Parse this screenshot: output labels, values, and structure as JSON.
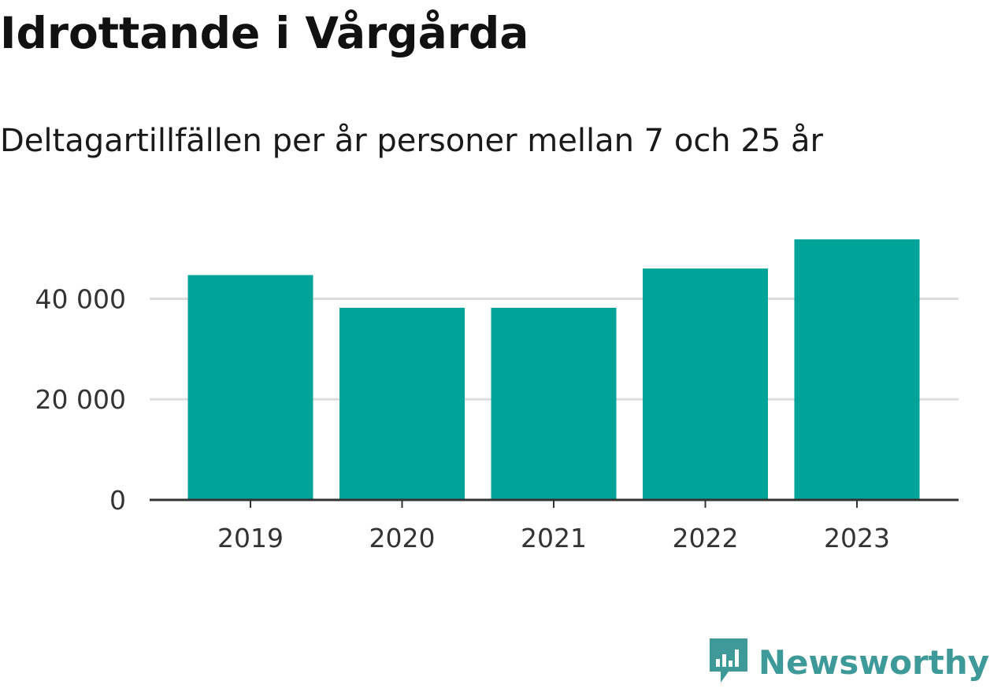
{
  "chart_data": {
    "type": "bar",
    "title": "Idrottande i Vårgårda",
    "subtitle": "Deltagartillfällen per år personer mellan 7 och 25 år",
    "categories": [
      "2019",
      "2020",
      "2021",
      "2022",
      "2023"
    ],
    "values": [
      44700,
      38200,
      38200,
      46000,
      51800
    ],
    "ylim": [
      0,
      54000
    ],
    "yticks": [
      0,
      20000,
      40000
    ],
    "ytick_labels": [
      "0",
      "20 000",
      "40 000"
    ],
    "grid": true,
    "colors": {
      "bar": "#00a398",
      "grid": "#dddddd",
      "axis": "#333333"
    }
  },
  "brand": {
    "name": "Newsworthy",
    "icon": "newsworthy-logo-icon",
    "color": "#3d9a98"
  }
}
